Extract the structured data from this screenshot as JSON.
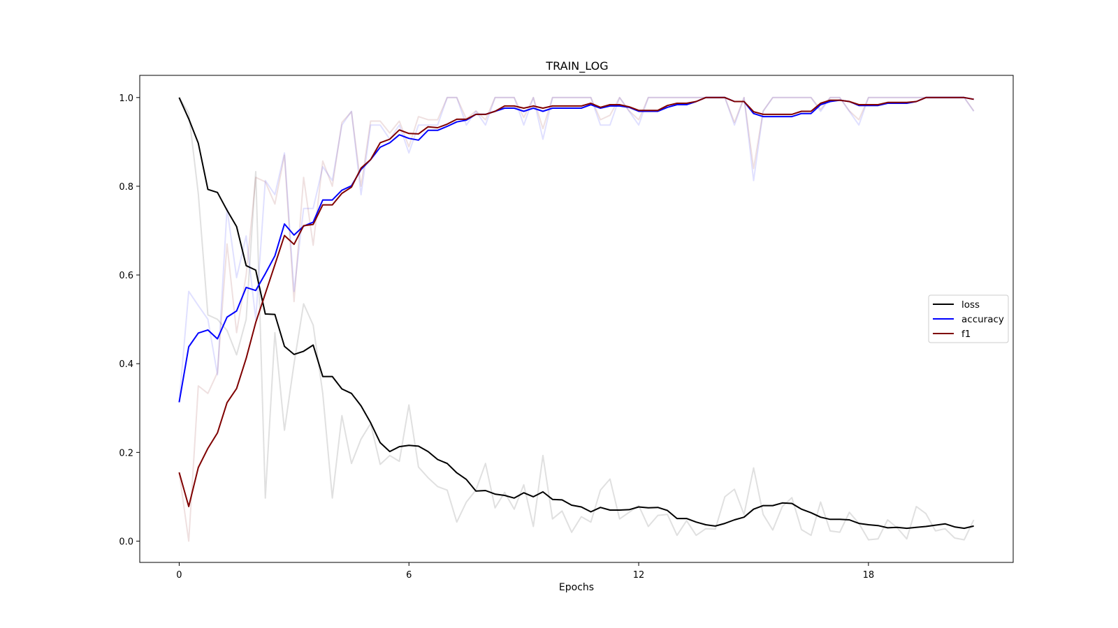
{
  "chart_data": {
    "type": "line",
    "title": "TRAIN_LOG",
    "xlabel": "Epochs",
    "ylabel": "",
    "xlim": [
      -1.03,
      21.78
    ],
    "ylim": [
      -0.048,
      1.05
    ],
    "xticks": [
      0,
      6,
      12,
      18
    ],
    "yticks": [
      0.0,
      0.2,
      0.4,
      0.6,
      0.8,
      1.0
    ],
    "ytick_labels": [
      "0.0",
      "0.2",
      "0.4",
      "0.6",
      "0.8",
      "1.0"
    ],
    "grid": false,
    "legend_position": "center-right",
    "legend": [
      "loss",
      "accuracy",
      "f1"
    ],
    "x_step": 0.25,
    "series": [
      {
        "name": "loss",
        "color": "#000000",
        "values": [
          1.0,
          0.952,
          0.897,
          0.793,
          0.786,
          0.746,
          0.709,
          0.621,
          0.611,
          0.512,
          0.511,
          0.439,
          0.421,
          0.428,
          0.442,
          0.371,
          0.371,
          0.343,
          0.333,
          0.305,
          0.267,
          0.222,
          0.202,
          0.213,
          0.216,
          0.214,
          0.202,
          0.184,
          0.175,
          0.154,
          0.139,
          0.113,
          0.114,
          0.106,
          0.103,
          0.097,
          0.109,
          0.1,
          0.111,
          0.094,
          0.093,
          0.081,
          0.077,
          0.066,
          0.076,
          0.07,
          0.07,
          0.071,
          0.077,
          0.075,
          0.076,
          0.069,
          0.051,
          0.051,
          0.043,
          0.037,
          0.034,
          0.04,
          0.048,
          0.054,
          0.072,
          0.08,
          0.08,
          0.086,
          0.085,
          0.072,
          0.064,
          0.054,
          0.049,
          0.049,
          0.048,
          0.04,
          0.037,
          0.035,
          0.03,
          0.031,
          0.029,
          0.031,
          0.033,
          0.036,
          0.039,
          0.032,
          0.029,
          0.034
        ]
      },
      {
        "name": "accuracy",
        "color": "#0000ff",
        "values": [
          0.313,
          0.438,
          0.469,
          0.476,
          0.456,
          0.505,
          0.519,
          0.572,
          0.565,
          0.603,
          0.643,
          0.715,
          0.69,
          0.71,
          0.719,
          0.769,
          0.769,
          0.791,
          0.801,
          0.838,
          0.86,
          0.888,
          0.898,
          0.916,
          0.908,
          0.904,
          0.926,
          0.926,
          0.935,
          0.945,
          0.949,
          0.962,
          0.962,
          0.969,
          0.976,
          0.976,
          0.969,
          0.976,
          0.969,
          0.976,
          0.976,
          0.976,
          0.976,
          0.984,
          0.976,
          0.981,
          0.981,
          0.978,
          0.969,
          0.969,
          0.969,
          0.978,
          0.984,
          0.984,
          0.991,
          1.0,
          1.0,
          1.0,
          0.991,
          0.991,
          0.964,
          0.957,
          0.957,
          0.957,
          0.957,
          0.964,
          0.964,
          0.984,
          0.991,
          0.994,
          0.991,
          0.982,
          0.982,
          0.982,
          0.987,
          0.987,
          0.987,
          0.991,
          1.0,
          1.0,
          1.0,
          1.0,
          1.0,
          0.996
        ]
      },
      {
        "name": "f1",
        "color": "#7f0000",
        "values": [
          0.155,
          0.078,
          0.166,
          0.209,
          0.244,
          0.312,
          0.344,
          0.412,
          0.493,
          0.558,
          0.623,
          0.689,
          0.669,
          0.711,
          0.714,
          0.758,
          0.758,
          0.784,
          0.798,
          0.841,
          0.86,
          0.898,
          0.906,
          0.927,
          0.919,
          0.918,
          0.934,
          0.932,
          0.94,
          0.951,
          0.951,
          0.962,
          0.962,
          0.969,
          0.981,
          0.981,
          0.976,
          0.981,
          0.976,
          0.981,
          0.981,
          0.981,
          0.981,
          0.987,
          0.978,
          0.984,
          0.984,
          0.979,
          0.971,
          0.971,
          0.971,
          0.982,
          0.987,
          0.987,
          0.991,
          1.0,
          1.0,
          1.0,
          0.991,
          0.991,
          0.968,
          0.962,
          0.962,
          0.962,
          0.962,
          0.969,
          0.969,
          0.987,
          0.994,
          0.994,
          0.991,
          0.984,
          0.984,
          0.984,
          0.989,
          0.989,
          0.989,
          0.991,
          1.0,
          1.0,
          1.0,
          1.0,
          1.0,
          0.996
        ]
      }
    ],
    "raw_series": [
      {
        "name": "loss",
        "color": "#000000",
        "opacity": 0.12,
        "values": [
          1.0,
          0.965,
          0.783,
          0.51,
          0.5,
          0.475,
          0.42,
          0.5,
          0.833,
          0.097,
          0.47,
          0.25,
          0.4,
          0.535,
          0.487,
          0.333,
          0.097,
          0.283,
          0.175,
          0.23,
          0.265,
          0.173,
          0.193,
          0.18,
          0.307,
          0.167,
          0.143,
          0.123,
          0.115,
          0.043,
          0.088,
          0.115,
          0.175,
          0.075,
          0.11,
          0.072,
          0.127,
          0.033,
          0.193,
          0.05,
          0.068,
          0.02,
          0.055,
          0.043,
          0.115,
          0.14,
          0.05,
          0.065,
          0.08,
          0.033,
          0.058,
          0.06,
          0.013,
          0.046,
          0.013,
          0.028,
          0.027,
          0.1,
          0.117,
          0.06,
          0.165,
          0.06,
          0.025,
          0.078,
          0.098,
          0.026,
          0.013,
          0.088,
          0.023,
          0.02,
          0.065,
          0.04,
          0.003,
          0.005,
          0.048,
          0.03,
          0.005,
          0.078,
          0.062,
          0.023,
          0.028,
          0.007,
          0.003,
          0.048
        ]
      },
      {
        "name": "accuracy",
        "color": "#0000ff",
        "opacity": 0.12,
        "values": [
          0.313,
          0.563,
          0.531,
          0.5,
          0.375,
          0.75,
          0.594,
          0.688,
          0.5,
          0.813,
          0.781,
          0.875,
          0.563,
          0.75,
          0.75,
          0.844,
          0.813,
          0.938,
          0.969,
          0.781,
          0.938,
          0.938,
          0.906,
          0.938,
          0.875,
          0.938,
          0.938,
          0.938,
          1.0,
          1.0,
          0.938,
          0.969,
          0.938,
          1.0,
          1.0,
          1.0,
          0.938,
          1.0,
          0.906,
          1.0,
          1.0,
          1.0,
          1.0,
          1.0,
          0.938,
          0.938,
          1.0,
          0.969,
          0.938,
          1.0,
          1.0,
          1.0,
          1.0,
          1.0,
          1.0,
          1.0,
          1.0,
          1.0,
          0.938,
          1.0,
          0.813,
          0.969,
          1.0,
          1.0,
          1.0,
          1.0,
          1.0,
          0.969,
          1.0,
          1.0,
          0.969,
          0.938,
          1.0,
          1.0,
          1.0,
          1.0,
          1.0,
          1.0,
          1.0,
          1.0,
          1.0,
          1.0,
          1.0,
          0.969
        ]
      },
      {
        "name": "f1",
        "color": "#7f0000",
        "opacity": 0.12,
        "values": [
          0.155,
          0.0,
          0.35,
          0.333,
          0.38,
          0.67,
          0.47,
          0.6,
          0.82,
          0.81,
          0.76,
          0.87,
          0.54,
          0.82,
          0.667,
          0.857,
          0.8,
          0.944,
          0.968,
          0.8,
          0.947,
          0.947,
          0.92,
          0.947,
          0.889,
          0.957,
          0.95,
          0.95,
          1.0,
          1.0,
          0.952,
          0.97,
          0.95,
          1.0,
          1.0,
          1.0,
          0.955,
          1.0,
          0.93,
          1.0,
          1.0,
          1.0,
          1.0,
          1.0,
          0.95,
          0.96,
          1.0,
          0.97,
          0.95,
          1.0,
          1.0,
          1.0,
          1.0,
          1.0,
          1.0,
          1.0,
          1.0,
          1.0,
          0.944,
          1.0,
          0.84,
          0.97,
          1.0,
          1.0,
          1.0,
          1.0,
          1.0,
          0.973,
          1.0,
          1.0,
          0.97,
          0.95,
          1.0,
          1.0,
          1.0,
          1.0,
          1.0,
          1.0,
          1.0,
          1.0,
          1.0,
          1.0,
          1.0,
          0.97
        ]
      }
    ]
  }
}
